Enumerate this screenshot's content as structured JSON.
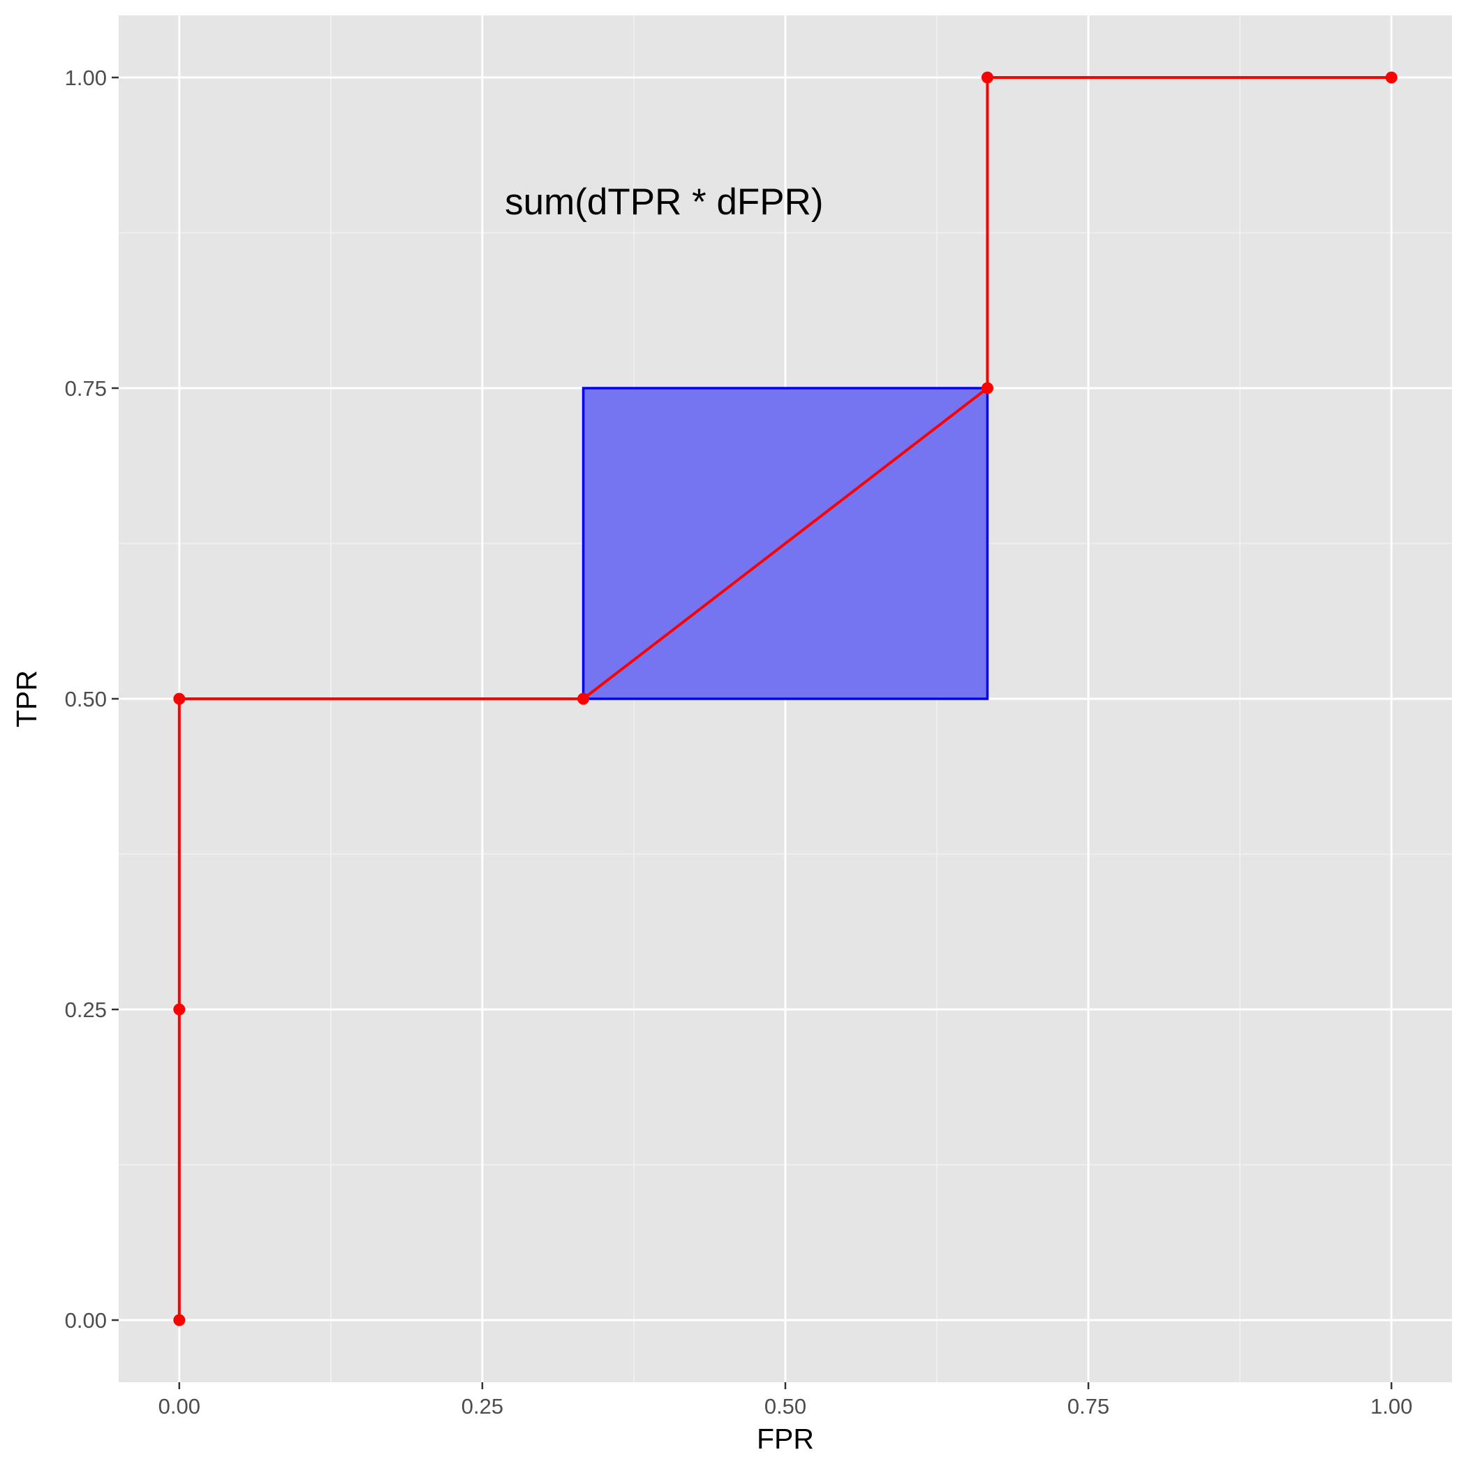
{
  "chart_data": {
    "type": "line",
    "title": "",
    "xlabel": "FPR",
    "ylabel": "TPR",
    "xlim": [
      -0.05,
      1.05
    ],
    "ylim": [
      -0.05,
      1.05
    ],
    "grid": true,
    "x_ticks": [
      0,
      0.25,
      0.5,
      0.75,
      1
    ],
    "x_tick_labels": [
      "0.00",
      "0.25",
      "0.50",
      "0.75",
      "1.00"
    ],
    "y_ticks": [
      0,
      0.25,
      0.5,
      0.75,
      1
    ],
    "y_tick_labels": [
      "0.00",
      "0.25",
      "0.50",
      "0.75",
      "1.00"
    ],
    "series": [
      {
        "color": "#ff0000",
        "x": [
          0,
          0,
          0,
          0.3333,
          0.6667,
          0.6667,
          1
        ],
        "y": [
          0,
          0.25,
          0.5,
          0.5,
          0.75,
          1,
          1
        ]
      }
    ],
    "rect": {
      "xmin": 0.3333,
      "xmax": 0.6667,
      "ymin": 0.5,
      "ymax": 0.75,
      "fill": "#7575f2",
      "stroke": "#0000ff"
    },
    "annotations": [
      {
        "text": "sum(dTPR * dFPR)",
        "x": 0.4,
        "y": 0.9
      }
    ]
  }
}
